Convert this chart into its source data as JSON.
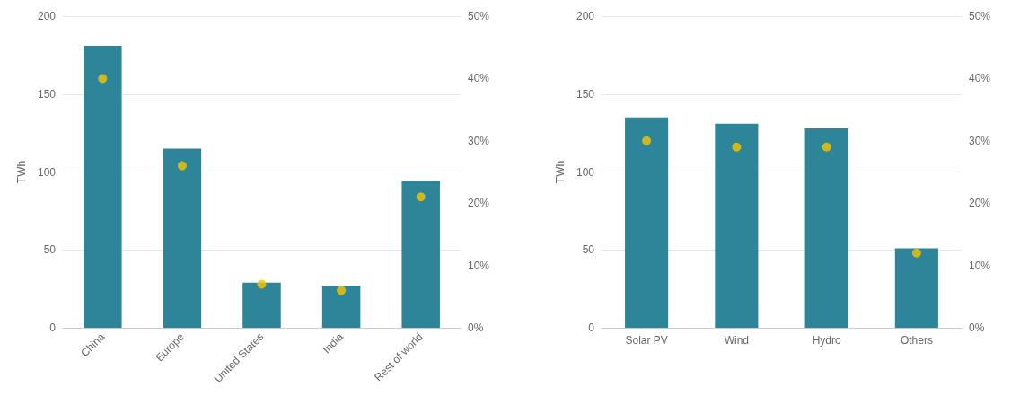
{
  "chart_data": [
    {
      "type": "bar",
      "ylabel": "TWh",
      "categories": [
        "China",
        "Europe",
        "United States",
        "India",
        "Rest of world"
      ],
      "ylim": [
        0,
        200
      ],
      "yticks": [
        0,
        50,
        100,
        150,
        200
      ],
      "y2lim": [
        0,
        50
      ],
      "y2ticks": [
        {
          "value": 0,
          "label": "0%"
        },
        {
          "value": 10,
          "label": "10%"
        },
        {
          "value": 20,
          "label": "20%"
        },
        {
          "value": 30,
          "label": "30%"
        },
        {
          "value": 40,
          "label": "40%"
        },
        {
          "value": 50,
          "label": "50%"
        }
      ],
      "grid": "y",
      "series": [
        {
          "color": "#2e8599",
          "values": [
            181,
            115,
            29,
            27,
            94
          ]
        },
        {
          "type": "scatter",
          "axis": "y2",
          "marker": "circle",
          "color": "#f5c400",
          "x": [
            "China",
            "Europe",
            "United States",
            "India",
            "Rest of world"
          ],
          "values": [
            40,
            26,
            7,
            6,
            21
          ]
        }
      ]
    },
    {
      "type": "bar",
      "ylabel": "TWh",
      "categories": [
        "Solar PV",
        "Wind",
        "Hydro",
        "Others"
      ],
      "ylim": [
        0,
        200
      ],
      "yticks": [
        0,
        50,
        100,
        150,
        200
      ],
      "y2lim": [
        0,
        50
      ],
      "y2ticks": [
        {
          "value": 0,
          "label": "0%"
        },
        {
          "value": 10,
          "label": "10%"
        },
        {
          "value": 20,
          "label": "20%"
        },
        {
          "value": 30,
          "label": "30%"
        },
        {
          "value": 40,
          "label": "40%"
        },
        {
          "value": 50,
          "label": "50%"
        }
      ],
      "grid": "y",
      "series": [
        {
          "color": "#2e8599",
          "values": [
            135,
            131,
            128,
            51
          ]
        },
        {
          "type": "scatter",
          "axis": "y2",
          "marker": "circle",
          "color": "#f5c400",
          "x": [
            "Solar PV",
            "Wind",
            "Hydro",
            "Others"
          ],
          "values": [
            30,
            29,
            29,
            12
          ]
        }
      ]
    }
  ]
}
